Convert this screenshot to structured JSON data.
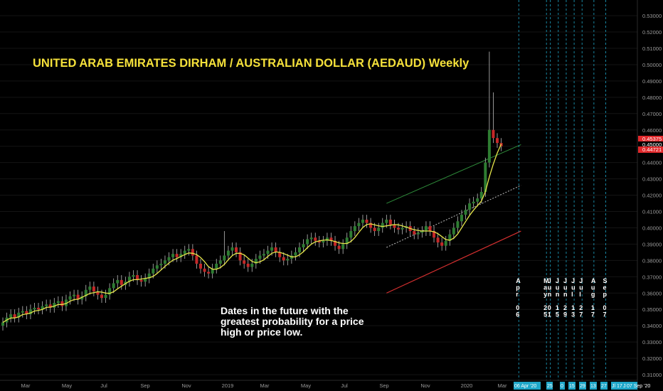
{
  "title": "UNITED ARAB EMIRATES DIRHAM / AUSTRALIAN DOLLAR (AEDAUD) Weekly",
  "note": "Dates in the future with the greatest probability for a price high or price low.",
  "colors": {
    "background": "#000000",
    "title": "#f5e13a",
    "up_candle": "#2e7d32",
    "down_candle": "#c62828",
    "moving_average": "#e6e64a",
    "upper_channel": "#2e8b3a",
    "lower_channel": "#d32f2f",
    "mid_channel": "#bdbdbd",
    "future_date_line": "#1ea7c9",
    "price_tag_red": "#e0282b",
    "date_tag": "#1ea7c9"
  },
  "chart_data": {
    "type": "candlestick",
    "ylim": [
      0.305,
      0.535
    ],
    "y_ticks": [
      "0.53000",
      "0.52000",
      "0.51000",
      "0.50000",
      "0.49000",
      "0.48000",
      "0.47000",
      "0.46000",
      "0.45000",
      "0.44000",
      "0.43000",
      "0.42000",
      "0.41000",
      "0.40000",
      "0.39000",
      "0.38000",
      "0.37000",
      "0.36000",
      "0.35000",
      "0.34000",
      "0.33000",
      "0.32000",
      "0.31000"
    ],
    "x_ticks": [
      "Mar",
      "May",
      "Jul",
      "Sep",
      "Nov",
      "2019",
      "Mar",
      "May",
      "Jul",
      "Sep",
      "Nov",
      "2020",
      "Mar"
    ],
    "price_tags": [
      "0.45375",
      "0.45000",
      "0.44721"
    ],
    "weekly_close": [
      0.342,
      0.345,
      0.347,
      0.345,
      0.348,
      0.349,
      0.347,
      0.35,
      0.351,
      0.35,
      0.352,
      0.353,
      0.351,
      0.354,
      0.355,
      0.352,
      0.356,
      0.358,
      0.359,
      0.356,
      0.358,
      0.362,
      0.364,
      0.361,
      0.359,
      0.357,
      0.359,
      0.363,
      0.366,
      0.368,
      0.365,
      0.367,
      0.37,
      0.371,
      0.368,
      0.367,
      0.369,
      0.372,
      0.375,
      0.377,
      0.378,
      0.38,
      0.382,
      0.384,
      0.382,
      0.384,
      0.386,
      0.387,
      0.383,
      0.378,
      0.375,
      0.373,
      0.372,
      0.375,
      0.378,
      0.38,
      0.383,
      0.386,
      0.388,
      0.385,
      0.38,
      0.378,
      0.376,
      0.378,
      0.381,
      0.383,
      0.384,
      0.386,
      0.388,
      0.385,
      0.382,
      0.38,
      0.381,
      0.383,
      0.385,
      0.388,
      0.39,
      0.393,
      0.394,
      0.392,
      0.391,
      0.392,
      0.394,
      0.392,
      0.389,
      0.387,
      0.39,
      0.394,
      0.398,
      0.401,
      0.403,
      0.405,
      0.403,
      0.4,
      0.398,
      0.4,
      0.403,
      0.405,
      0.402,
      0.4,
      0.399,
      0.4,
      0.401,
      0.398,
      0.396,
      0.397,
      0.398,
      0.401,
      0.398,
      0.394,
      0.391,
      0.389,
      0.392,
      0.396,
      0.4,
      0.404,
      0.408,
      0.411,
      0.415,
      0.416,
      0.418,
      0.422,
      0.44,
      0.46,
      0.455,
      0.452,
      0.45
    ]
  },
  "future_dates": [
    {
      "label": "Apr 06",
      "letters": [
        "A",
        "p",
        "r",
        "",
        "0",
        "6"
      ],
      "week_index": 129
    },
    {
      "label": "May 25",
      "letters": [
        "M",
        "a",
        "y",
        "",
        "2",
        "5"
      ],
      "week_index": 136
    },
    {
      "label": "Jun 01",
      "letters": [
        "J",
        "u",
        "n",
        "",
        "0",
        "1"
      ],
      "week_index": 137
    },
    {
      "label": "Jun 15",
      "letters": [
        "J",
        "u",
        "n",
        "",
        "1",
        "5"
      ],
      "week_index": 139
    },
    {
      "label": "Jun 29",
      "letters": [
        "J",
        "u",
        "n",
        "",
        "2",
        "9"
      ],
      "week_index": 141
    },
    {
      "label": "Jul 13",
      "letters": [
        "J",
        "u",
        "l",
        "",
        "1",
        "3"
      ],
      "week_index": 143
    },
    {
      "label": "Jul 27",
      "letters": [
        "J",
        "u",
        "l",
        "",
        "2",
        "7"
      ],
      "week_index": 145
    },
    {
      "label": "Aug 17",
      "letters": [
        "A",
        "u",
        "g",
        "",
        "1",
        "7"
      ],
      "week_index": 148
    },
    {
      "label": "Sep 07",
      "letters": [
        "S",
        "e",
        "p",
        "",
        "0",
        "7"
      ],
      "week_index": 151
    }
  ],
  "bottom_tags": [
    "06 Apr '20",
    "25",
    "0",
    "15",
    "29",
    "13",
    "27",
    "Jl",
    "17",
    "Jl",
    "07 Sep '20"
  ]
}
